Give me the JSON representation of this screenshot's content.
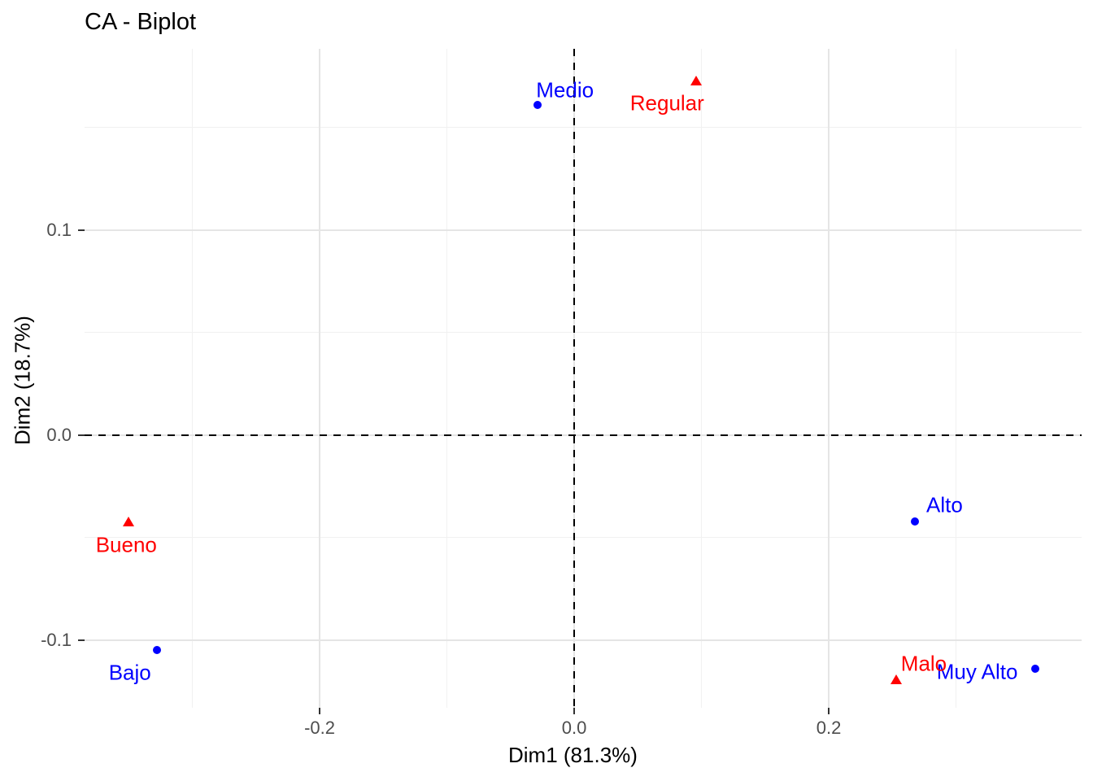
{
  "chart_data": {
    "type": "scatter",
    "title": "CA - Biplot",
    "xlabel": "Dim1 (81.3%)",
    "ylabel": "Dim2 (18.7%)",
    "xlim": [
      -0.3847,
      0.3987
    ],
    "ylim": [
      -0.133,
      0.1885
    ],
    "x_major_ticks": [
      -0.2,
      0.0,
      0.2
    ],
    "y_major_ticks": [
      -0.1,
      0.0,
      0.1
    ],
    "x_minor_ticks": [
      -0.3,
      -0.1,
      0.1,
      0.3
    ],
    "y_minor_ticks": [
      -0.15,
      -0.05,
      0.05,
      0.15
    ],
    "tick_decimals": 1,
    "grid": true,
    "legend": "none",
    "reference_lines": [
      {
        "axis": "x",
        "value": 0,
        "style": "dashed",
        "color": "#000000"
      },
      {
        "axis": "y",
        "value": 0,
        "style": "dashed",
        "color": "#000000"
      }
    ],
    "series": [
      {
        "name": "rows",
        "marker": "circle",
        "color": "#0000ff",
        "points": [
          {
            "label": "Bajo",
            "x": -0.328,
            "y": -0.105,
            "label_offset": [
              -33,
              28
            ]
          },
          {
            "label": "Medio",
            "x": -0.029,
            "y": 0.161,
            "label_offset": [
              34,
              -18
            ]
          },
          {
            "label": "Alto",
            "x": 0.268,
            "y": -0.042,
            "label_offset": [
              36,
              -20
            ]
          },
          {
            "label": "Muy Alto",
            "x": 0.362,
            "y": -0.114,
            "label_offset": [
              -71,
              4
            ]
          }
        ]
      },
      {
        "name": "columns",
        "marker": "triangle",
        "color": "#ff0000",
        "points": [
          {
            "label": "Bueno",
            "x": -0.35,
            "y": -0.042,
            "label_offset": [
              -3,
              29
            ]
          },
          {
            "label": "Regular",
            "x": 0.096,
            "y": 0.173,
            "label_offset": [
              -36,
              28
            ]
          },
          {
            "label": "Malo",
            "x": 0.253,
            "y": -0.119,
            "label_offset": [
              34,
              -19
            ]
          }
        ]
      }
    ],
    "style_colors": {
      "grid_major": "#e5e5e5",
      "grid_minor": "#f1f1f1",
      "tick_label": "#4d4d4d",
      "tick_mark": "#333333",
      "title": "#000000",
      "background": "#ffffff"
    }
  }
}
